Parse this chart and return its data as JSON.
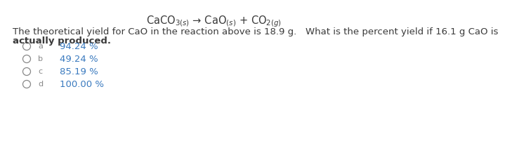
{
  "background_color": "#ffffff",
  "title_math": "CaCO$_{3(s)}$ → CaO$_{(s)}$ + CO$_{2(g)}$",
  "body_line1": "The theoretical yield for CaO in the reaction above is 18.9 g.   What is the percent yield if 16.1 g CaO is",
  "body_line2": "actually produced.",
  "options": [
    {
      "label": "a",
      "text": "94.24 %"
    },
    {
      "label": "b",
      "text": "49.24 %"
    },
    {
      "label": "c",
      "text": "85.19 %"
    },
    {
      "label": "d",
      "text": "100.00 %"
    }
  ],
  "body_color": "#3a3a3a",
  "option_value_color": "#3a7abf",
  "option_label_color": "#888888",
  "circle_color": "#888888",
  "title_color": "#3a3a3a",
  "title_fontsize": 10.5,
  "body_fontsize": 9.5,
  "option_fontsize": 9.5
}
